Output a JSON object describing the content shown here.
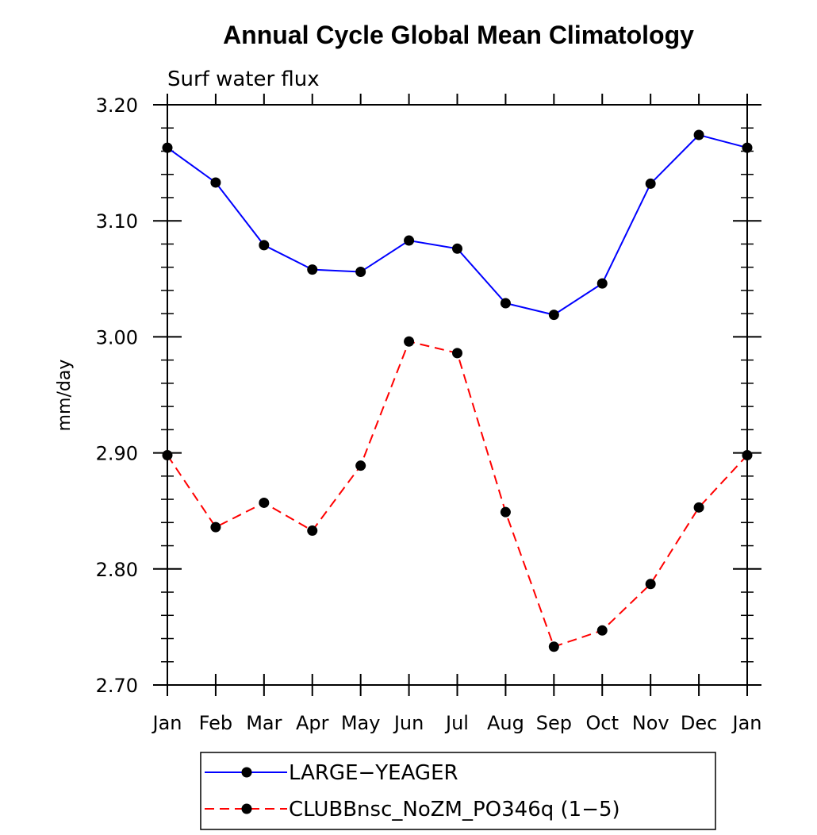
{
  "chart_data": {
    "type": "line",
    "title": "Annual Cycle Global Mean Climatology",
    "subtitle": "Surf water flux",
    "xlabel": "",
    "ylabel": "mm/day",
    "categories": [
      "Jan",
      "Feb",
      "Mar",
      "Apr",
      "May",
      "Jun",
      "Jul",
      "Aug",
      "Sep",
      "Oct",
      "Nov",
      "Dec",
      "Jan"
    ],
    "yticks": [
      "3.20",
      "3.10",
      "3.00",
      "2.90",
      "2.80",
      "2.70"
    ],
    "ylim": [
      2.7,
      3.2
    ],
    "grid": false,
    "legend_position": "bottom",
    "series": [
      {
        "name": "LARGE−YEAGER",
        "color": "#0000ff",
        "dash": "solid",
        "marker": "circle",
        "values": [
          3.163,
          3.133,
          3.079,
          3.058,
          3.056,
          3.083,
          3.076,
          3.029,
          3.019,
          3.046,
          3.132,
          3.174,
          3.163
        ]
      },
      {
        "name": "CLUBBnsc_NoZM_PO346q (1−5)",
        "color": "#ff0000",
        "dash": "dashed",
        "marker": "circle",
        "values": [
          2.898,
          2.836,
          2.857,
          2.833,
          2.889,
          2.996,
          2.986,
          2.849,
          2.733,
          2.747,
          2.787,
          2.853,
          2.898
        ]
      }
    ]
  }
}
